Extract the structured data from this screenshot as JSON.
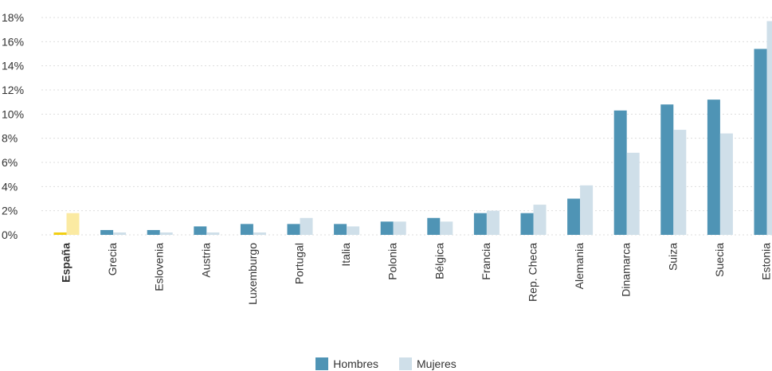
{
  "chart_data": {
    "type": "bar",
    "categories": [
      "España",
      "Grecia",
      "Eslovenia",
      "Austria",
      "Luxemburgo",
      "Portugal",
      "Italia",
      "Polonia",
      "Bélgica",
      "Francia",
      "Rep. Checa",
      "Alemania",
      "Dinamarca",
      "Suiza",
      "Suecia",
      "Estonia"
    ],
    "highlight_category": "España",
    "series": [
      {
        "name": "Hombres",
        "values": [
          0.2,
          0.4,
          0.4,
          0.7,
          0.9,
          0.9,
          0.9,
          1.1,
          1.4,
          1.8,
          1.8,
          3.0,
          10.3,
          10.8,
          11.2,
          15.4
        ]
      },
      {
        "name": "Mujeres",
        "values": [
          1.8,
          0.2,
          0.2,
          0.2,
          0.2,
          1.4,
          0.7,
          1.1,
          1.1,
          2.0,
          2.5,
          4.1,
          6.8,
          8.7,
          8.4,
          17.7
        ]
      }
    ],
    "ylim": [
      0,
      18
    ],
    "yticks": [
      0,
      2,
      4,
      6,
      8,
      10,
      12,
      14,
      16,
      18
    ],
    "ytick_labels": [
      "0%",
      "2%",
      "4%",
      "6%",
      "8%",
      "10%",
      "12%",
      "14%",
      "16%",
      "18%"
    ],
    "grid": true,
    "legend_position": "bottom-center"
  },
  "colors": {
    "hombres": "#4f94b5",
    "mujeres": "#cfdfe9",
    "highlight_hombres": "#f2cf14",
    "highlight_mujeres": "#fbeaa2",
    "grid": "#dddddd",
    "text": "#333333"
  },
  "legend": [
    {
      "label": "Hombres"
    },
    {
      "label": "Mujeres"
    }
  ]
}
